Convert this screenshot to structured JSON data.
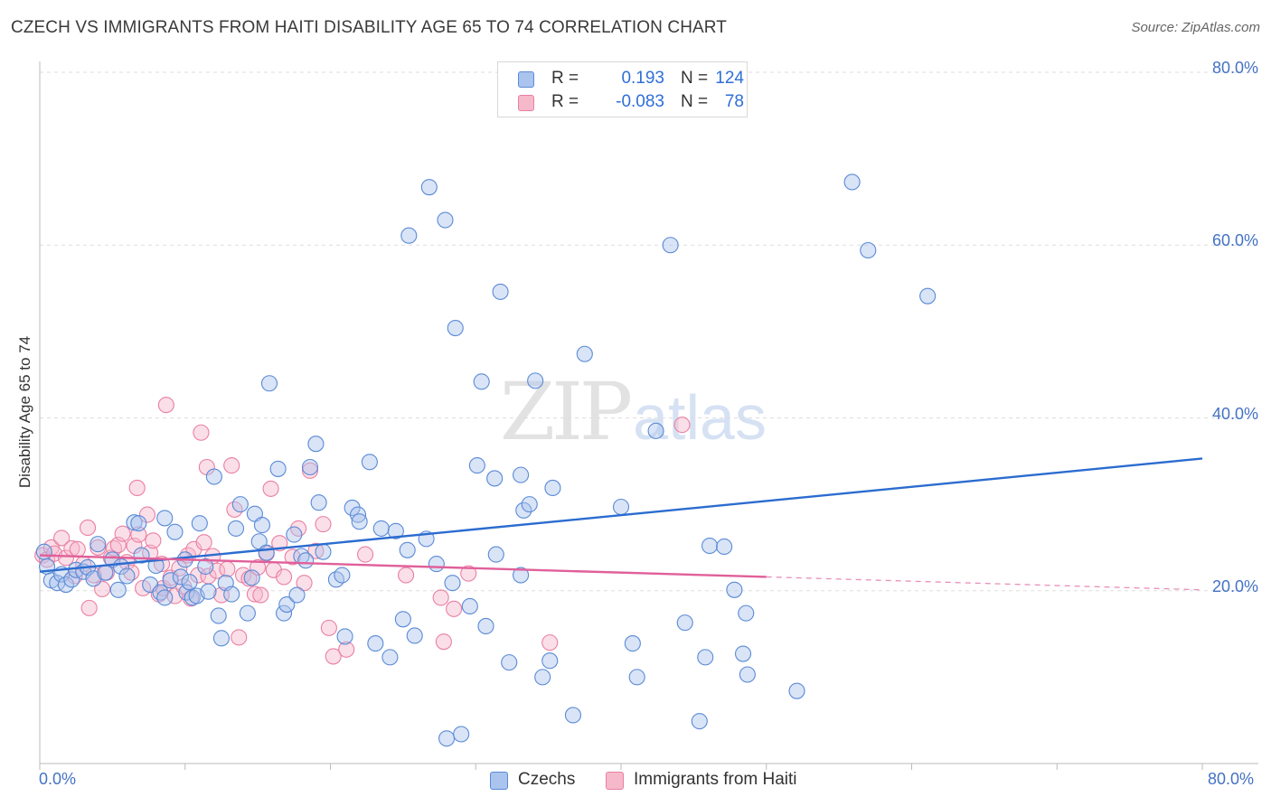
{
  "header": {
    "title": "CZECH VS IMMIGRANTS FROM HAITI DISABILITY AGE 65 TO 74 CORRELATION CHART",
    "source": "Source: ZipAtlas.com"
  },
  "watermark": {
    "zip": "ZIP",
    "atlas": "atlas"
  },
  "legend": {
    "r_label": "R =",
    "n_label": "N =",
    "rows": [
      {
        "r": "0.193",
        "n": "124"
      },
      {
        "r": "-0.083",
        "n": "78"
      }
    ]
  },
  "colors": {
    "czechs_fill": "#aac4ee",
    "czechs_stroke": "#5a8ad6",
    "czechs_line": "#2b6cd0",
    "haiti_fill": "#f6b8cb",
    "haiti_stroke": "#ea7fa2",
    "haiti_line": "#e0609a",
    "tick_text": "#4472c4",
    "grid": "#dddddd"
  },
  "chart_data": {
    "type": "scatter",
    "title": "CZECH VS IMMIGRANTS FROM HAITI DISABILITY AGE 65 TO 74 CORRELATION CHART",
    "xlabel": "",
    "ylabel": "Disability Age 65 to 74",
    "xlim": [
      0,
      80
    ],
    "ylim": [
      0,
      80
    ],
    "x_tick_labels": [
      "0.0%",
      "80.0%"
    ],
    "y_ticks": [
      20,
      40,
      60,
      80
    ],
    "y_tick_labels": [
      "20.0%",
      "40.0%",
      "60.0%",
      "80.0%"
    ],
    "grid": true,
    "legend_position": "top-center",
    "series": [
      {
        "name": "Czechs",
        "r": 0.193,
        "n": 124,
        "trend": {
          "x": [
            0,
            80
          ],
          "y": [
            22.2,
            35.3
          ],
          "dashed_from_x": null
        },
        "points": [
          [
            0.3,
            24.5
          ],
          [
            0.5,
            22.8
          ],
          [
            0.8,
            21.2
          ],
          [
            1.2,
            20.9
          ],
          [
            1.5,
            21.9
          ],
          [
            1.8,
            20.7
          ],
          [
            2.2,
            21.3
          ],
          [
            2.5,
            22.4
          ],
          [
            3,
            22.2
          ],
          [
            3.3,
            22.7
          ],
          [
            3.7,
            21.4
          ],
          [
            4,
            25.4
          ],
          [
            4.5,
            22.1
          ],
          [
            5,
            23.6
          ],
          [
            5.4,
            20.1
          ],
          [
            5.6,
            22.8
          ],
          [
            6,
            21.7
          ],
          [
            6.5,
            27.9
          ],
          [
            6.8,
            27.8
          ],
          [
            7,
            24.1
          ],
          [
            7.6,
            20.7
          ],
          [
            8,
            22.9
          ],
          [
            8.3,
            19.8
          ],
          [
            8.6,
            19.2
          ],
          [
            8.6,
            28.4
          ],
          [
            9,
            21.2
          ],
          [
            9.3,
            26.8
          ],
          [
            9.7,
            21.6
          ],
          [
            10,
            23.6
          ],
          [
            10.1,
            19.8
          ],
          [
            10.3,
            21.0
          ],
          [
            10.5,
            19.2
          ],
          [
            10.8,
            19.4
          ],
          [
            11,
            27.8
          ],
          [
            11.4,
            22.8
          ],
          [
            11.6,
            19.9
          ],
          [
            12,
            33.2
          ],
          [
            12.3,
            17.1
          ],
          [
            12.5,
            14.5
          ],
          [
            12.8,
            20.9
          ],
          [
            13.2,
            19.6
          ],
          [
            13.5,
            27.2
          ],
          [
            13.8,
            30.0
          ],
          [
            14.3,
            17.4
          ],
          [
            14.6,
            21.5
          ],
          [
            14.8,
            28.9
          ],
          [
            15.1,
            25.7
          ],
          [
            15.3,
            27.6
          ],
          [
            15.6,
            24.4
          ],
          [
            15.8,
            44.0
          ],
          [
            16.4,
            34.1
          ],
          [
            16.8,
            17.4
          ],
          [
            17,
            18.4
          ],
          [
            17.5,
            26.5
          ],
          [
            17.7,
            19.5
          ],
          [
            18,
            24.0
          ],
          [
            18.3,
            23.5
          ],
          [
            18.6,
            34.3
          ],
          [
            19,
            37.0
          ],
          [
            19.2,
            30.2
          ],
          [
            19.5,
            24.5
          ],
          [
            20.4,
            21.3
          ],
          [
            20.8,
            21.8
          ],
          [
            21,
            14.7
          ],
          [
            21.5,
            29.6
          ],
          [
            21.9,
            28.8
          ],
          [
            22,
            28.0
          ],
          [
            22.7,
            34.9
          ],
          [
            23.1,
            13.9
          ],
          [
            23.5,
            27.2
          ],
          [
            24.1,
            12.3
          ],
          [
            24.5,
            26.9
          ],
          [
            25,
            16.7
          ],
          [
            25.3,
            24.7
          ],
          [
            25.4,
            61.1
          ],
          [
            25.8,
            14.8
          ],
          [
            26.6,
            26.0
          ],
          [
            26.8,
            66.7
          ],
          [
            27.3,
            23.1
          ],
          [
            27.9,
            62.9
          ],
          [
            28,
            2.9
          ],
          [
            28.4,
            20.9
          ],
          [
            28.6,
            50.4
          ],
          [
            29,
            3.4
          ],
          [
            29.6,
            18.2
          ],
          [
            30.1,
            34.5
          ],
          [
            30.4,
            44.2
          ],
          [
            30.7,
            15.9
          ],
          [
            31.3,
            33.0
          ],
          [
            31.4,
            24.2
          ],
          [
            31.7,
            54.6
          ],
          [
            32.3,
            11.7
          ],
          [
            33.1,
            21.8
          ],
          [
            33.1,
            33.4
          ],
          [
            33.3,
            29.3
          ],
          [
            33.7,
            30.0
          ],
          [
            34.1,
            44.3
          ],
          [
            34.6,
            10.0
          ],
          [
            35.1,
            11.9
          ],
          [
            35.3,
            31.9
          ],
          [
            36.7,
            5.6
          ],
          [
            37.5,
            47.4
          ],
          [
            40,
            29.7
          ],
          [
            40.8,
            13.9
          ],
          [
            41.1,
            10.0
          ],
          [
            42.4,
            38.5
          ],
          [
            43.4,
            60.0
          ],
          [
            44.4,
            16.3
          ],
          [
            45.4,
            4.9
          ],
          [
            45.8,
            12.3
          ],
          [
            46.1,
            25.2
          ],
          [
            47.1,
            25.1
          ],
          [
            47.8,
            20.1
          ],
          [
            48.4,
            12.7
          ],
          [
            48.6,
            17.4
          ],
          [
            48.7,
            10.3
          ],
          [
            52.1,
            8.4
          ],
          [
            55.9,
            67.3
          ],
          [
            57,
            59.4
          ],
          [
            61.1,
            54.1
          ]
        ]
      },
      {
        "name": "Immigrants from Haiti",
        "r": -0.083,
        "n": 78,
        "trend": {
          "x": [
            0,
            80
          ],
          "y": [
            24.1,
            20.1
          ],
          "dashed_from_x": 50
        },
        "points": [
          [
            0.2,
            24.1
          ],
          [
            0.5,
            23.6
          ],
          [
            0.8,
            25.0
          ],
          [
            1,
            24.3
          ],
          [
            1.5,
            26.1
          ],
          [
            1.8,
            23.8
          ],
          [
            2.2,
            24.9
          ],
          [
            2.4,
            21.7
          ],
          [
            2.6,
            24.8
          ],
          [
            3,
            23.1
          ],
          [
            3.3,
            27.3
          ],
          [
            3.4,
            18.0
          ],
          [
            3.7,
            21.8
          ],
          [
            4,
            25.0
          ],
          [
            4.3,
            20.2
          ],
          [
            4.6,
            22.1
          ],
          [
            4.9,
            23.8
          ],
          [
            5.1,
            24.9
          ],
          [
            5.4,
            25.3
          ],
          [
            5.7,
            26.6
          ],
          [
            6,
            23.3
          ],
          [
            6.3,
            22.1
          ],
          [
            6.5,
            25.2
          ],
          [
            6.7,
            31.9
          ],
          [
            6.8,
            26.5
          ],
          [
            7.1,
            20.3
          ],
          [
            7.4,
            28.8
          ],
          [
            7.6,
            24.4
          ],
          [
            7.8,
            25.8
          ],
          [
            8.2,
            19.6
          ],
          [
            8.4,
            23.1
          ],
          [
            8.5,
            20.3
          ],
          [
            8.7,
            41.5
          ],
          [
            9,
            21.5
          ],
          [
            9.3,
            19.4
          ],
          [
            9.6,
            22.6
          ],
          [
            9.9,
            20.5
          ],
          [
            10.2,
            24.1
          ],
          [
            10.4,
            19.1
          ],
          [
            10.6,
            24.8
          ],
          [
            10.9,
            21.8
          ],
          [
            11.1,
            38.3
          ],
          [
            11.3,
            25.6
          ],
          [
            11.5,
            34.3
          ],
          [
            11.6,
            21.7
          ],
          [
            11.9,
            24.0
          ],
          [
            12.2,
            22.3
          ],
          [
            12.5,
            19.5
          ],
          [
            12.9,
            22.5
          ],
          [
            13.2,
            34.5
          ],
          [
            13.4,
            29.4
          ],
          [
            13.7,
            14.6
          ],
          [
            14,
            21.8
          ],
          [
            14.4,
            21.4
          ],
          [
            14.8,
            19.6
          ],
          [
            15,
            22.7
          ],
          [
            15.2,
            19.5
          ],
          [
            15.6,
            24.3
          ],
          [
            15.9,
            31.8
          ],
          [
            16.1,
            22.4
          ],
          [
            16.5,
            25.5
          ],
          [
            16.8,
            21.6
          ],
          [
            17.4,
            23.9
          ],
          [
            17.8,
            27.2
          ],
          [
            18.2,
            20.9
          ],
          [
            18.6,
            33.9
          ],
          [
            19,
            24.6
          ],
          [
            19.5,
            27.7
          ],
          [
            19.9,
            15.7
          ],
          [
            20.2,
            12.4
          ],
          [
            21.1,
            13.2
          ],
          [
            22.4,
            24.2
          ],
          [
            25.2,
            21.8
          ],
          [
            27.6,
            19.2
          ],
          [
            27.8,
            14.1
          ],
          [
            28.5,
            17.9
          ],
          [
            29.5,
            22.0
          ],
          [
            35.1,
            14.0
          ],
          [
            44.2,
            39.2
          ]
        ]
      }
    ]
  },
  "bottom_legend": {
    "items": [
      "Czechs",
      "Immigrants from Haiti"
    ]
  }
}
